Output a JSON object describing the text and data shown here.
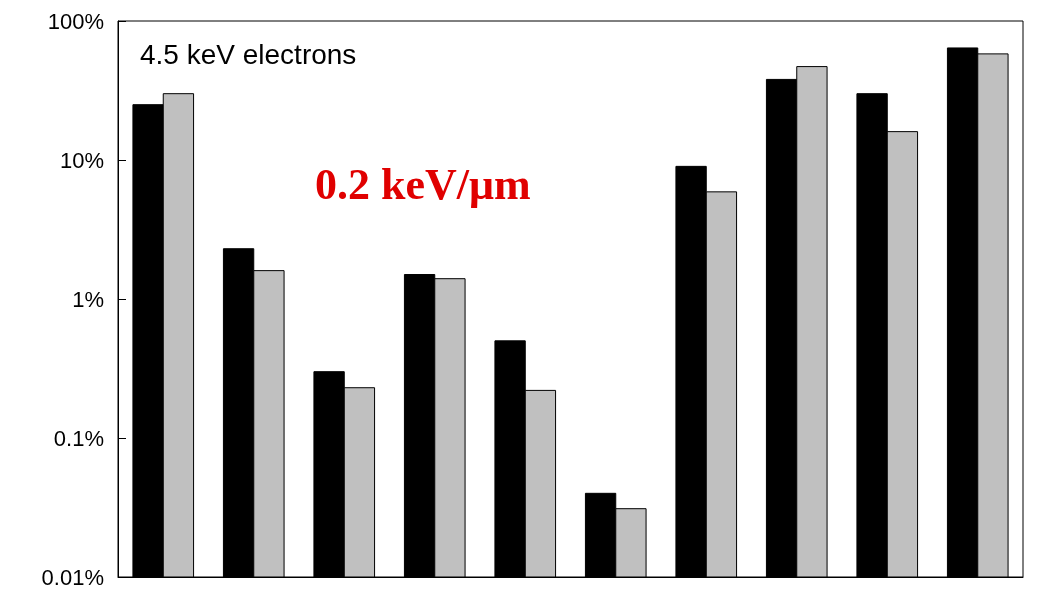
{
  "chart_data": {
    "type": "bar",
    "log": "y",
    "grid": false,
    "categories": [
      null,
      null,
      null,
      null,
      null,
      null,
      null,
      null,
      null,
      null
    ],
    "series": [
      {
        "color": "#000000",
        "values": [
          25,
          2.3,
          0.3,
          1.5,
          0.5,
          0.04,
          9,
          38,
          30,
          64
        ]
      },
      {
        "color": "#c0c0c0",
        "values": [
          30,
          1.6,
          0.23,
          1.4,
          0.22,
          0.031,
          5.9,
          47,
          16,
          58
        ]
      }
    ],
    "ylim": [
      0.01,
      100
    ],
    "yticks": [
      {
        "value": 0.01,
        "label": "0.01%"
      },
      {
        "value": 0.1,
        "label": "0.1%"
      },
      {
        "value": 1,
        "label": "1%"
      },
      {
        "value": 10,
        "label": "10%"
      },
      {
        "value": 100,
        "label": "100%"
      }
    ],
    "annotations": [
      "4.5 keV electrons",
      "0.2 keV/μm"
    ]
  }
}
